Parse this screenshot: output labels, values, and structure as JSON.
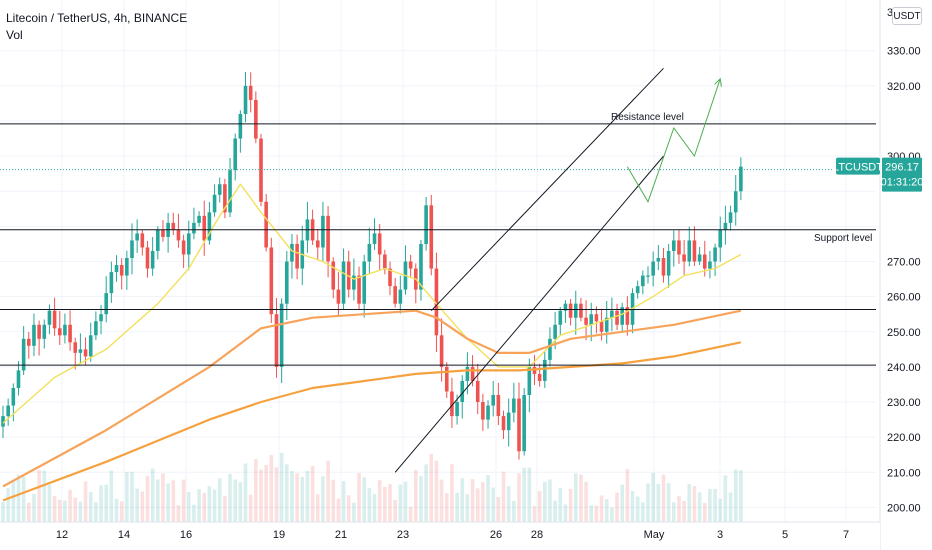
{
  "legend": {
    "symbol": "Litecoin / TetherUS, 4h, BINANCE",
    "indicator": "Vol"
  },
  "currency": "USDT",
  "chart_data": {
    "type": "candlestick",
    "symbol": "LTCUSDT",
    "exchange": "BINANCE",
    "interval": "4h",
    "y_axis": {
      "min": 195,
      "max": 336,
      "ticks": [
        200,
        210,
        220,
        230,
        240,
        250,
        260,
        270,
        280,
        290,
        300,
        310,
        320,
        330
      ],
      "tick_labels": [
        "200.00",
        "210.00",
        "220.00",
        "230.00",
        "240.00",
        "250.00",
        "260.00",
        "270.00",
        "",
        "",
        "300.00",
        "",
        "320.00",
        "330.00"
      ]
    },
    "x_axis_labels": [
      "12",
      "14",
      "16",
      "19",
      "21",
      "23",
      "26",
      "28",
      "May",
      "3",
      "5",
      "7"
    ],
    "price_levels": [
      {
        "value": 309.18,
        "label": "309.18",
        "note": "Resistance level"
      },
      {
        "value": 279.03,
        "label": "279.03",
        "note": "Support level"
      },
      {
        "value": 256.35,
        "label": "256.35",
        "note": ""
      },
      {
        "value": 240.51,
        "label": "240.51",
        "note": ""
      }
    ],
    "last_price": {
      "ticker": "LTCUSDT",
      "value": 296.17,
      "label": "296.17",
      "countdown": "01:31:20"
    },
    "top_tick_partial": "3",
    "closes": [
      226,
      229,
      234,
      239,
      248,
      246,
      252,
      248,
      252,
      256,
      251,
      249,
      252,
      247,
      244,
      245,
      243,
      249,
      253,
      255,
      261,
      267,
      269,
      266,
      271,
      276,
      278,
      274,
      268,
      273,
      279,
      277,
      281,
      279,
      276,
      272,
      278,
      281,
      283,
      276,
      284,
      289,
      292,
      284,
      296,
      305,
      312,
      320,
      316,
      305,
      287,
      274,
      255,
      240,
      258,
      270,
      275,
      268,
      276,
      282,
      276,
      274,
      283,
      270,
      262,
      258,
      270,
      262,
      266,
      258,
      270,
      275,
      278,
      272,
      268,
      263,
      258,
      262,
      270,
      268,
      262,
      275,
      286,
      268,
      249,
      240,
      233,
      226,
      230,
      236,
      240,
      236,
      230,
      225,
      229,
      232,
      226,
      222,
      227,
      231,
      216,
      232,
      240,
      238,
      236,
      242,
      248,
      252,
      256,
      258,
      254,
      258,
      254,
      252,
      255,
      253,
      250,
      254,
      256,
      252,
      257,
      252,
      261,
      263,
      266,
      266,
      270,
      271,
      266,
      273,
      276,
      272,
      270,
      276,
      270,
      272,
      268,
      270,
      274,
      279,
      281,
      284,
      290,
      297
    ],
    "ma_fast": {
      "color": "#f3e05c",
      "values": [
        [
          0,
          224
        ],
        [
          10,
          237
        ],
        [
          20,
          245
        ],
        [
          30,
          258
        ],
        [
          36,
          268
        ],
        [
          42,
          283
        ],
        [
          46,
          292
        ],
        [
          50,
          284
        ],
        [
          56,
          273
        ],
        [
          62,
          270
        ],
        [
          68,
          265
        ],
        [
          74,
          268
        ],
        [
          80,
          265
        ],
        [
          84,
          258
        ],
        [
          90,
          248
        ],
        [
          96,
          240
        ],
        [
          102,
          240
        ],
        [
          108,
          249
        ],
        [
          114,
          252
        ],
        [
          120,
          255
        ],
        [
          126,
          260
        ],
        [
          132,
          266
        ],
        [
          138,
          268
        ],
        [
          143,
          272
        ]
      ]
    },
    "ma_mid": {
      "color": "#f7a35a",
      "values": [
        [
          0,
          206
        ],
        [
          20,
          222
        ],
        [
          40,
          240
        ],
        [
          50,
          251
        ],
        [
          60,
          254
        ],
        [
          70,
          255
        ],
        [
          80,
          256
        ],
        [
          84,
          254
        ],
        [
          90,
          248
        ],
        [
          96,
          244
        ],
        [
          102,
          244
        ],
        [
          110,
          248
        ],
        [
          120,
          250
        ],
        [
          130,
          252
        ],
        [
          143,
          256
        ]
      ]
    },
    "ma_slow": {
      "color": "#f5a13e",
      "values": [
        [
          0,
          202
        ],
        [
          20,
          213
        ],
        [
          40,
          225
        ],
        [
          50,
          230
        ],
        [
          60,
          234
        ],
        [
          70,
          236
        ],
        [
          80,
          238
        ],
        [
          90,
          239
        ],
        [
          100,
          239
        ],
        [
          110,
          240
        ],
        [
          120,
          241
        ],
        [
          130,
          243
        ],
        [
          143,
          247
        ]
      ]
    },
    "channel_upper": {
      "from": [
        83,
        256
      ],
      "to": [
        128,
        325
      ]
    },
    "channel_lower": {
      "from": [
        76,
        210
      ],
      "to": [
        128,
        300
      ]
    },
    "projection": [
      [
        121,
        297
      ],
      [
        125,
        287
      ],
      [
        130,
        308
      ],
      [
        134,
        300
      ],
      [
        139,
        322
      ]
    ]
  }
}
